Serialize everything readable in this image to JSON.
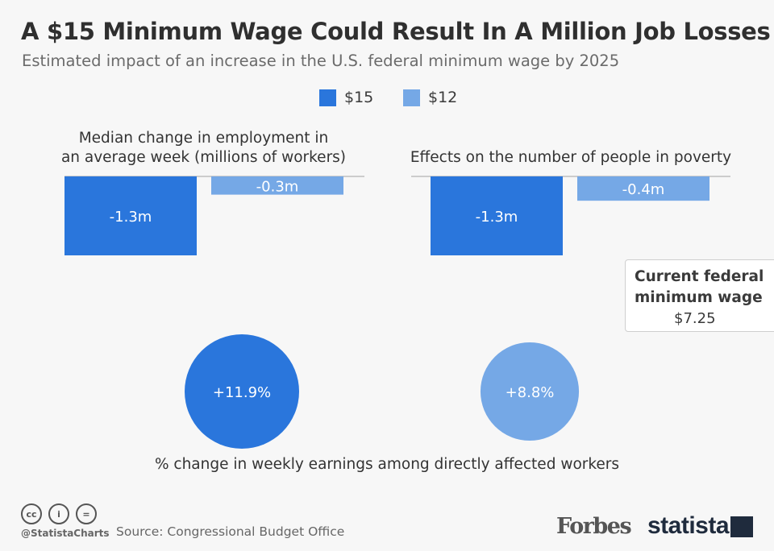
{
  "header": {
    "title": "A $15 Minimum Wage Could Result In A Million Job Losses",
    "subtitle": "Estimated impact of an increase in the U.S. federal minimum wage by 2025"
  },
  "legend": [
    {
      "label": "$15",
      "color": "#2a76dc"
    },
    {
      "label": "$12",
      "color": "#75a8e6"
    }
  ],
  "chart_data": [
    {
      "type": "bar",
      "title": "Median change in employment in an average week (millions of workers)",
      "title_lines": [
        "Median change in employment in",
        "an average week (millions of workers)"
      ],
      "categories": [
        "$15",
        "$12"
      ],
      "values": [
        -1.3,
        -0.3
      ],
      "labels": [
        "-1.3m",
        "-0.3m"
      ],
      "ylim": [
        -1.3,
        0
      ]
    },
    {
      "type": "bar",
      "title": "Effects on the number of people in poverty",
      "title_lines": [
        "Effects on the number of people in poverty"
      ],
      "categories": [
        "$15",
        "$12"
      ],
      "values": [
        -1.3,
        -0.4
      ],
      "labels": [
        "-1.3m",
        "-0.4m"
      ],
      "ylim": [
        -1.3,
        0
      ]
    },
    {
      "type": "bubble",
      "title": "% change in weekly earnings among directly affected workers",
      "categories": [
        "$15",
        "$12"
      ],
      "values": [
        11.9,
        8.8
      ],
      "labels": [
        "+11.9%",
        "+8.8%"
      ]
    }
  ],
  "note": {
    "title": "Current federal minimum wage",
    "value": "$7.25"
  },
  "footer": {
    "handle": "@StatistaCharts",
    "source": "Source: Congressional Budget Office",
    "logo_forbes": "Forbes",
    "logo_statista": "statista",
    "license_icons": [
      "cc-icon",
      "by-icon",
      "nd-icon"
    ]
  }
}
